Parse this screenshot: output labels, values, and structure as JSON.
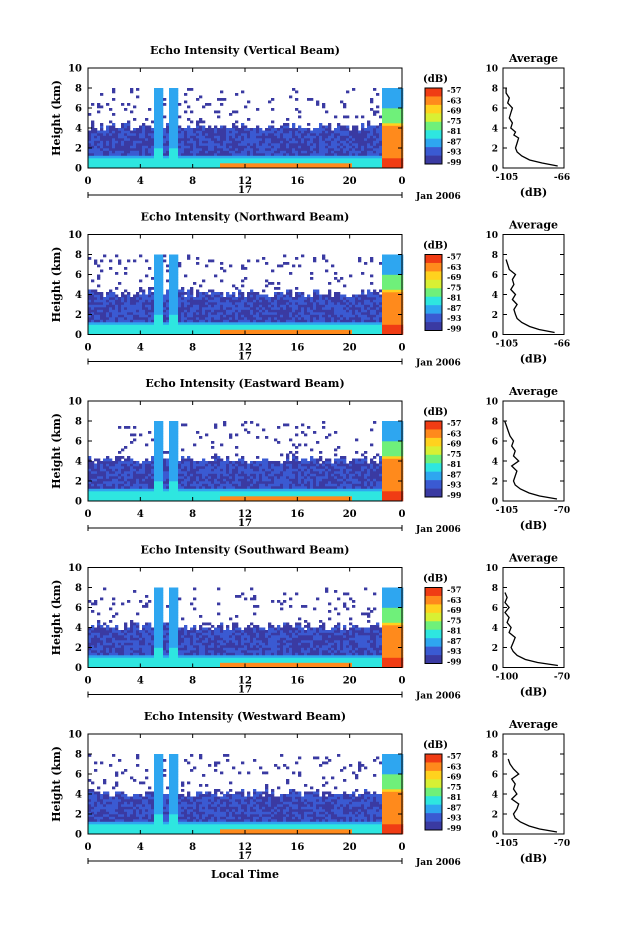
{
  "figure": {
    "xlabel": "Local Time",
    "date_label": "Jan 2006",
    "day_label": "17",
    "colorbar_unit": "(dB)",
    "colorbar_ticks": [
      "-57",
      "-63",
      "-69",
      "-75",
      "-81",
      "-87",
      "-93",
      "-99"
    ],
    "colorbar_colors": [
      "#f03c14",
      "#ff8a1c",
      "#ffd21e",
      "#d8f034",
      "#6ff07a",
      "#2ee6e0",
      "#2ea6f0",
      "#3a5ad2",
      "#3a3aa2"
    ]
  },
  "chart_data": [
    {
      "type": "heatmap",
      "title": "Echo Intensity (Vertical Beam)",
      "ylabel": "Height (km)",
      "xlim": [
        0,
        24
      ],
      "ylim": [
        0,
        10
      ],
      "x_ticks": [
        "0",
        "4",
        "8",
        "12",
        "16",
        "20",
        "0"
      ],
      "y_ticks": [
        "0",
        "2",
        "4",
        "6",
        "8",
        "10"
      ],
      "profile": {
        "title": "Average",
        "xlabel": "(dB)",
        "xlim": [
          -105,
          -66
        ],
        "x_ticks": [
          "-105",
          "-66"
        ],
        "y_ticks": [
          "0",
          "2",
          "4",
          "6",
          "8",
          "10"
        ],
        "height_km": [
          0.2,
          0.5,
          0.8,
          1.2,
          1.6,
          2.0,
          2.5,
          3.0,
          3.3,
          3.6,
          4.0,
          4.5,
          5.0,
          5.5,
          6.0,
          6.5,
          7.0,
          7.5,
          8.0
        ],
        "db": [
          -70,
          -80,
          -88,
          -93,
          -96,
          -97,
          -96,
          -95,
          -98,
          -97,
          -100,
          -99,
          -101,
          -100,
          -99,
          -102,
          -101,
          -103,
          -103
        ]
      }
    },
    {
      "type": "heatmap",
      "title": "Echo Intensity (Northward Beam)",
      "ylabel": "Height (km)",
      "xlim": [
        0,
        24
      ],
      "ylim": [
        0,
        10
      ],
      "x_ticks": [
        "0",
        "4",
        "8",
        "12",
        "16",
        "20",
        "0"
      ],
      "y_ticks": [
        "0",
        "2",
        "4",
        "6",
        "8",
        "10"
      ],
      "profile": {
        "title": "Average",
        "xlabel": "(dB)",
        "xlim": [
          -105,
          -66
        ],
        "x_ticks": [
          "-105",
          "-66"
        ],
        "y_ticks": [
          "0",
          "2",
          "4",
          "6",
          "8",
          "10"
        ],
        "height_km": [
          0.2,
          0.5,
          0.8,
          1.2,
          1.6,
          2.0,
          2.5,
          3.0,
          3.5,
          4.0,
          4.5,
          5.0,
          5.5,
          6.0,
          6.5,
          7.0,
          7.5
        ],
        "db": [
          -72,
          -82,
          -88,
          -93,
          -96,
          -97,
          -98,
          -96,
          -99,
          -97,
          -100,
          -98,
          -99,
          -97,
          -101,
          -102,
          -103
        ]
      }
    },
    {
      "type": "heatmap",
      "title": "Echo Intensity (Eastward Beam)",
      "ylabel": "Height (km)",
      "xlim": [
        0,
        24
      ],
      "ylim": [
        0,
        10
      ],
      "x_ticks": [
        "0",
        "4",
        "8",
        "12",
        "16",
        "20",
        "0"
      ],
      "y_ticks": [
        "0",
        "2",
        "4",
        "6",
        "8",
        "10"
      ],
      "profile": {
        "title": "Average",
        "xlabel": "(dB)",
        "xlim": [
          -105,
          -70
        ],
        "x_ticks": [
          "-105",
          "-70"
        ],
        "y_ticks": [
          "0",
          "2",
          "4",
          "6",
          "8",
          "10"
        ],
        "height_km": [
          0.2,
          0.5,
          0.8,
          1.2,
          1.6,
          2.0,
          2.5,
          3.0,
          3.5,
          4.0,
          4.5,
          5.0,
          5.5,
          6.0,
          6.5,
          7.0,
          7.5,
          8.0
        ],
        "db": [
          -74,
          -84,
          -90,
          -95,
          -98,
          -99,
          -98,
          -97,
          -100,
          -96,
          -99,
          -98,
          -100,
          -99,
          -101,
          -102,
          -103,
          -104
        ]
      }
    },
    {
      "type": "heatmap",
      "title": "Echo Intensity (Southward Beam)",
      "ylabel": "Height (km)",
      "xlim": [
        0,
        24
      ],
      "ylim": [
        0,
        10
      ],
      "x_ticks": [
        "0",
        "4",
        "8",
        "12",
        "16",
        "20",
        "0"
      ],
      "y_ticks": [
        "0",
        "2",
        "4",
        "6",
        "8",
        "10"
      ],
      "profile": {
        "title": "Average",
        "xlabel": "(dB)",
        "xlim": [
          -100,
          -70
        ],
        "x_ticks": [
          "-100",
          "-70"
        ],
        "y_ticks": [
          "0",
          "2",
          "4",
          "6",
          "8",
          "10"
        ],
        "height_km": [
          0.2,
          0.5,
          0.8,
          1.2,
          1.6,
          2.0,
          2.5,
          3.0,
          3.5,
          4.0,
          4.5,
          5.0,
          5.5,
          6.0,
          6.5,
          7.0,
          7.5
        ],
        "db": [
          -73,
          -83,
          -89,
          -93,
          -95,
          -96,
          -95,
          -94,
          -97,
          -96,
          -98,
          -97,
          -99,
          -97,
          -99,
          -98,
          -99
        ]
      }
    },
    {
      "type": "heatmap",
      "title": "Echo Intensity (Westward Beam)",
      "ylabel": "Height (km)",
      "xlim": [
        0,
        24
      ],
      "ylim": [
        0,
        10
      ],
      "x_ticks": [
        "0",
        "4",
        "8",
        "12",
        "16",
        "20",
        "0"
      ],
      "y_ticks": [
        "0",
        "2",
        "4",
        "6",
        "8",
        "10"
      ],
      "profile": {
        "title": "Average",
        "xlabel": "(dB)",
        "xlim": [
          -105,
          -70
        ],
        "x_ticks": [
          "-105",
          "-70"
        ],
        "y_ticks": [
          "0",
          "2",
          "4",
          "6",
          "8",
          "10"
        ],
        "height_km": [
          0.2,
          0.5,
          0.8,
          1.2,
          1.6,
          2.0,
          2.5,
          3.0,
          3.5,
          4.0,
          4.5,
          5.0,
          5.5,
          6.0,
          6.5,
          7.0,
          7.5
        ],
        "db": [
          -74,
          -84,
          -90,
          -95,
          -98,
          -99,
          -97,
          -96,
          -100,
          -97,
          -99,
          -98,
          -100,
          -96,
          -99,
          -101,
          -102
        ]
      }
    }
  ]
}
